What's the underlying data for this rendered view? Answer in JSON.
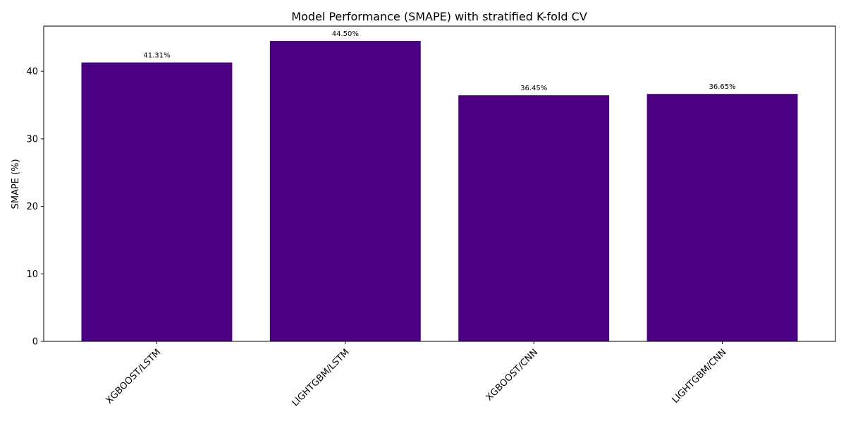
{
  "chart_data": {
    "type": "bar",
    "title": "Model Performance (SMAPE) with stratified K-fold CV",
    "xlabel": "",
    "ylabel": "SMAPE (%)",
    "categories": [
      "XGBOOST/LSTM",
      "LIGHTGBM/LSTM",
      "XGBOOST/CNN",
      "LIGHTGBM/CNN"
    ],
    "values": [
      41.31,
      44.5,
      36.45,
      36.65
    ],
    "data_labels": [
      "41.31%",
      "44.50%",
      "36.45%",
      "36.65%"
    ],
    "ylim": [
      0,
      46.7
    ],
    "yticks": [
      0,
      10,
      20,
      30,
      40
    ],
    "ytick_labels": [
      "0",
      "10",
      "20",
      "30",
      "40"
    ],
    "bar_color": "#4b0082",
    "grid": false,
    "legend": "none",
    "xtick_rotation_deg": 45
  }
}
